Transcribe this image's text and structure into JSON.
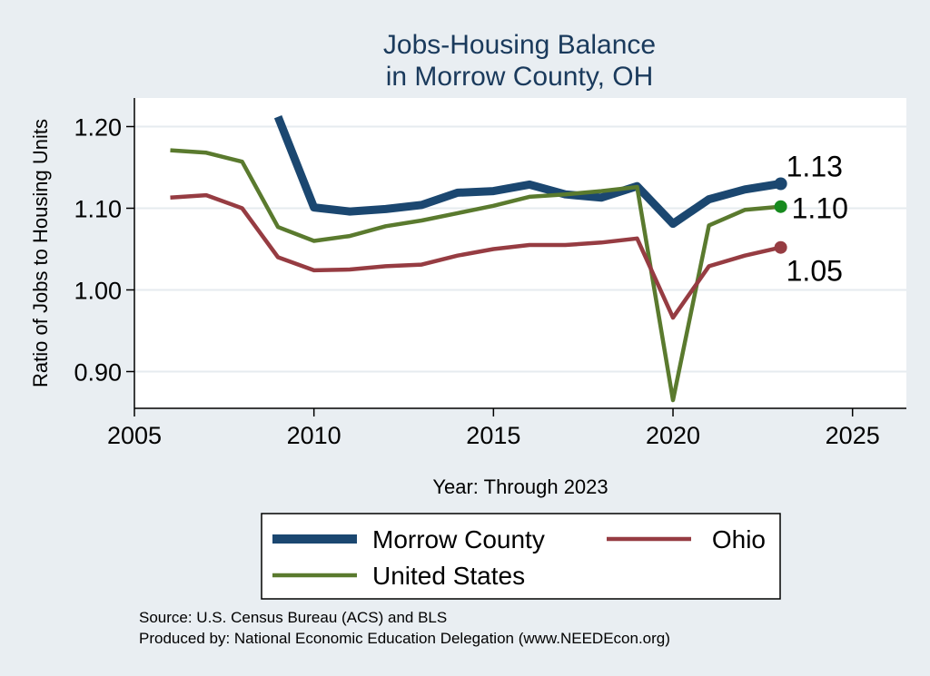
{
  "chart_data": {
    "type": "line",
    "title": [
      "Jobs-Housing Balance",
      "in Morrow County, OH"
    ],
    "xlabel": "Year: Through 2023",
    "ylabel": "Ratio of Jobs to Housing Units",
    "xlim": [
      2005,
      2026.5
    ],
    "ylim": [
      0.855,
      1.235
    ],
    "xticks": [
      2005,
      2010,
      2015,
      2020,
      2025
    ],
    "xtick_labels": [
      "2005",
      "2010",
      "2015",
      "2020",
      "2025"
    ],
    "yticks": [
      0.9,
      1.0,
      1.1,
      1.2
    ],
    "ytick_labels": [
      "0.90",
      "1.00",
      "1.10",
      "1.20"
    ],
    "grid": true,
    "series": [
      {
        "name": "Morrow County",
        "color": "#1b4770",
        "x": [
          2009,
          2010,
          2011,
          2012,
          2013,
          2014,
          2015,
          2016,
          2017,
          2018,
          2019,
          2020,
          2021,
          2022,
          2023
        ],
        "values": [
          1.212,
          1.101,
          1.096,
          1.099,
          1.104,
          1.119,
          1.121,
          1.129,
          1.117,
          1.113,
          1.127,
          1.081,
          1.111,
          1.123,
          1.13
        ],
        "end_label": "1.13",
        "end_marker_color": "#1b4770"
      },
      {
        "name": "Ohio",
        "color": "#963c42",
        "x": [
          2006,
          2007,
          2008,
          2009,
          2010,
          2011,
          2012,
          2013,
          2014,
          2015,
          2016,
          2017,
          2018,
          2019,
          2020,
          2021,
          2022,
          2023
        ],
        "values": [
          1.113,
          1.116,
          1.1,
          1.04,
          1.024,
          1.025,
          1.029,
          1.031,
          1.042,
          1.05,
          1.055,
          1.055,
          1.058,
          1.063,
          0.966,
          1.029,
          1.042,
          1.052
        ],
        "end_label": "1.05",
        "end_marker_color": "#963c42"
      },
      {
        "name": "United States",
        "color": "#5a7a2e",
        "x": [
          2006,
          2007,
          2008,
          2009,
          2010,
          2011,
          2012,
          2013,
          2014,
          2015,
          2016,
          2017,
          2018,
          2019,
          2020,
          2021,
          2022,
          2023
        ],
        "values": [
          1.171,
          1.168,
          1.157,
          1.077,
          1.06,
          1.066,
          1.078,
          1.085,
          1.094,
          1.103,
          1.114,
          1.117,
          1.121,
          1.126,
          0.865,
          1.079,
          1.098,
          1.102
        ],
        "end_label": "1.10",
        "end_marker_color": "#178a1e"
      }
    ],
    "legend": {
      "placement": "bottom",
      "entries": [
        "Morrow County",
        "Ohio",
        "United States"
      ]
    },
    "source_lines": [
      "Source: U.S. Census Bureau (ACS) and BLS",
      "Produced by: National Economic Education Delegation (www.NEEDEcon.org)"
    ]
  }
}
